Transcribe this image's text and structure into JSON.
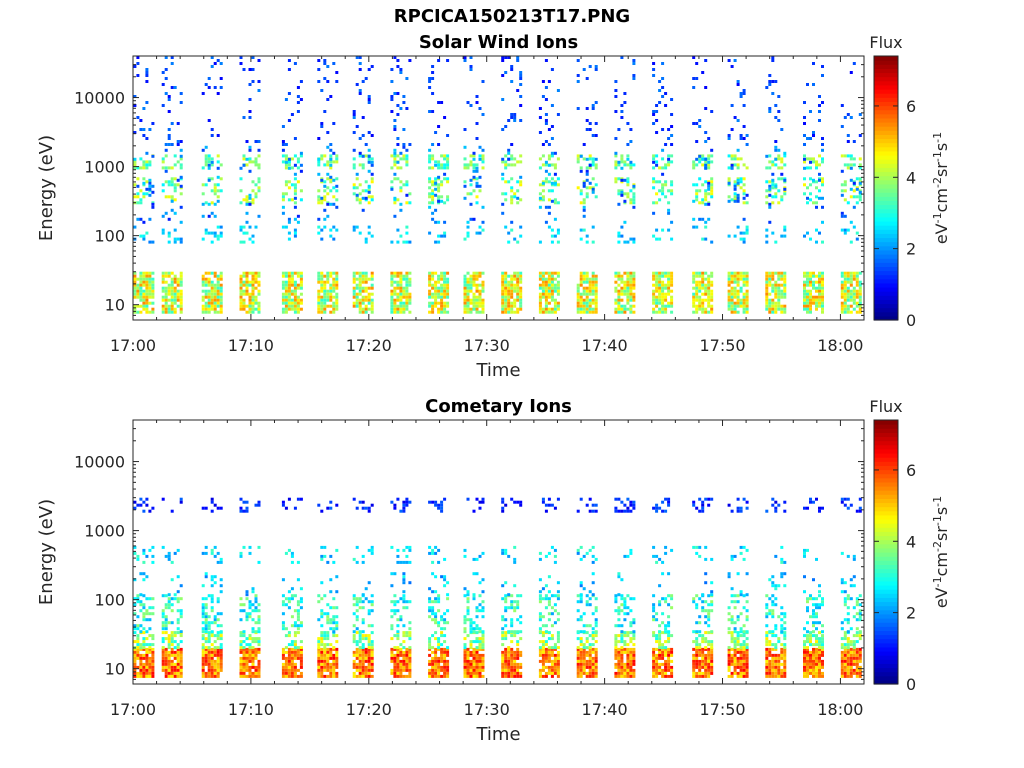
{
  "figure_title": "RPCICA150213T17.PNG",
  "chart_data": [
    {
      "type": "heatmap",
      "id": "solar",
      "title": "Solar Wind Ions",
      "xlabel": "Time",
      "ylabel": "Energy (eV)",
      "y_scale": "log",
      "ylim": [
        6,
        40000
      ],
      "xlim": [
        "17:00",
        "18:02"
      ],
      "x_ticks": [
        "17:00",
        "17:10",
        "17:20",
        "17:30",
        "17:40",
        "17:50",
        "18:00"
      ],
      "y_ticks": [
        10,
        100,
        1000,
        10000
      ],
      "y_tick_labels": [
        "10",
        "100",
        "1000",
        "10000"
      ],
      "colorbar": {
        "label": "Flux",
        "unit_label": "eV-1cm-2sr-1s-1",
        "range": [
          0,
          7.4
        ],
        "ticks": [
          0,
          2,
          4,
          6
        ],
        "colormap": "jet"
      },
      "scan_times_min": [
        0.2,
        2.6,
        6.0,
        9.2,
        12.8,
        15.8,
        18.8,
        22.0,
        25.2,
        28.2,
        31.4,
        34.6,
        37.8,
        41.0,
        44.2,
        47.6,
        50.6,
        53.8,
        57.0,
        60.2
      ],
      "bands": [
        {
          "emin": 8,
          "emax": 30,
          "flux": 4.3,
          "spread": 1.2,
          "density": 0.8
        },
        {
          "emin": 1000,
          "emax": 1500,
          "flux": 3.6,
          "spread": 0.9,
          "density": 0.45
        },
        {
          "emin": 300,
          "emax": 700,
          "flux": 3.7,
          "spread": 1.0,
          "density": 0.35
        },
        {
          "emin": 80,
          "emax": 140,
          "flux": 2.5,
          "spread": 0.7,
          "density": 0.22
        },
        {
          "emin": 2000,
          "emax": 40000,
          "flux": 1.4,
          "spread": 0.5,
          "density": 0.09
        },
        {
          "emin": 150,
          "emax": 2000,
          "flux": 1.8,
          "spread": 0.7,
          "density": 0.08
        }
      ]
    },
    {
      "type": "heatmap",
      "id": "cometary",
      "title": "Cometary Ions",
      "xlabel": "Time",
      "ylabel": "Energy (eV)",
      "y_scale": "log",
      "ylim": [
        6,
        40000
      ],
      "xlim": [
        "17:00",
        "18:02"
      ],
      "x_ticks": [
        "17:00",
        "17:10",
        "17:20",
        "17:30",
        "17:40",
        "17:50",
        "18:00"
      ],
      "y_ticks": [
        10,
        100,
        1000,
        10000
      ],
      "y_tick_labels": [
        "10",
        "100",
        "1000",
        "10000"
      ],
      "colorbar": {
        "label": "Flux",
        "unit_label": "eV-1cm-2sr-1s-1",
        "range": [
          0,
          7.4
        ],
        "ticks": [
          0,
          2,
          4,
          6
        ],
        "colormap": "jet"
      },
      "scan_times_min": [
        0.2,
        2.6,
        6.0,
        9.2,
        12.8,
        15.8,
        18.8,
        22.0,
        25.2,
        28.2,
        31.4,
        34.6,
        37.8,
        41.0,
        44.2,
        47.6,
        50.6,
        53.8,
        57.0,
        60.2
      ],
      "bands": [
        {
          "emin": 8,
          "emax": 20,
          "flux": 5.6,
          "spread": 0.9,
          "density": 0.9
        },
        {
          "emin": 20,
          "emax": 35,
          "flux": 3.8,
          "spread": 1.0,
          "density": 0.55
        },
        {
          "emin": 35,
          "emax": 120,
          "flux": 3.0,
          "spread": 0.9,
          "density": 0.35
        },
        {
          "emin": 120,
          "emax": 250,
          "flux": 2.4,
          "spread": 0.7,
          "density": 0.12
        },
        {
          "emin": 350,
          "emax": 600,
          "flux": 2.6,
          "spread": 0.7,
          "density": 0.2
        },
        {
          "emin": 2000,
          "emax": 3000,
          "flux": 1.2,
          "spread": 0.5,
          "density": 0.25
        }
      ]
    }
  ]
}
